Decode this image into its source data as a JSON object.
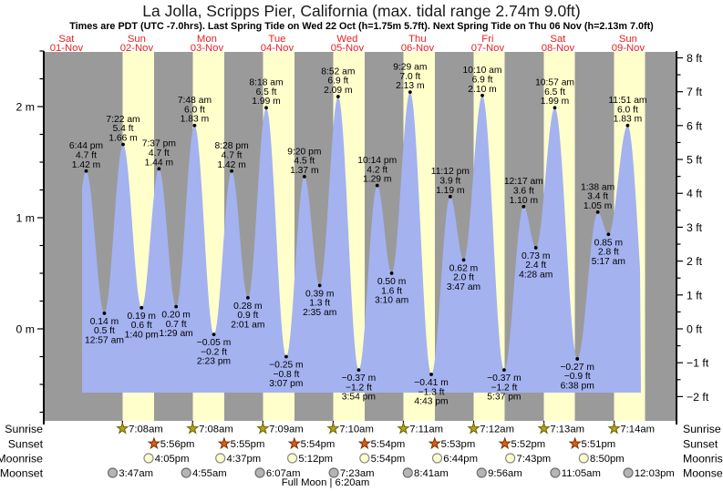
{
  "page": {
    "title": "La Jolla, Scripps Pier, California (max. tidal range 2.74m 9.0ft)",
    "subtitle": "Times are PDT (UTC -7.0hrs). Last Spring Tide on Wed 22 Oct (h=1.75m 5.7ft). Next Spring Tide on Thu 06 Nov (h=2.13m 7.0ft)"
  },
  "chart_data": {
    "type": "area",
    "title": "La Jolla, Scripps Pier tide curve",
    "ylim_m": [
      -0.85,
      2.5
    ],
    "y_axis_left": {
      "unit": "m",
      "tick_values": [
        2,
        1,
        0
      ],
      "tick_labels": [
        "2 m",
        "1 m",
        "0 m"
      ]
    },
    "y_axis_right": {
      "unit": "ft",
      "tick_values": [
        8,
        7,
        6,
        5,
        4,
        3,
        2,
        1,
        0,
        -1,
        -2
      ],
      "tick_labels": [
        "8 ft",
        "7 ft",
        "6 ft",
        "5 ft",
        "4 ft",
        "3 ft",
        "2 ft",
        "1 ft",
        "0 ft",
        "−1 ft",
        "−2 ft"
      ]
    },
    "days": [
      {
        "name": "Sat",
        "date": "01-Nov"
      },
      {
        "name": "Sun",
        "date": "02-Nov"
      },
      {
        "name": "Mon",
        "date": "03-Nov"
      },
      {
        "name": "Tue",
        "date": "04-Nov"
      },
      {
        "name": "Wed",
        "date": "05-Nov"
      },
      {
        "name": "Thu",
        "date": "06-Nov"
      },
      {
        "name": "Fri",
        "date": "07-Nov"
      },
      {
        "name": "Sat",
        "date": "08-Nov"
      },
      {
        "name": "Sun",
        "date": "09-Nov"
      }
    ],
    "tide_events": [
      {
        "day": 0,
        "hour": 18.733,
        "type": "high",
        "time": "6:44 pm",
        "ft_label": "4.7 ft",
        "m_label": "1.42 m",
        "height_m": 1.42
      },
      {
        "day": 1,
        "hour": 0.95,
        "type": "low",
        "time": "12:57 am",
        "ft_label": "0.5 ft",
        "m_label": "0.14 m",
        "height_m": 0.14
      },
      {
        "day": 1,
        "hour": 7.367,
        "type": "high",
        "time": "7:22 am",
        "ft_label": "5.4 ft",
        "m_label": "1.66 m",
        "height_m": 1.66
      },
      {
        "day": 1,
        "hour": 13.667,
        "type": "low",
        "time": "1:40 pm",
        "ft_label": "0.6 ft",
        "m_label": "0.19 m",
        "height_m": 0.19
      },
      {
        "day": 1,
        "hour": 19.617,
        "type": "high",
        "time": "7:37 pm",
        "ft_label": "4.7 ft",
        "m_label": "1.44 m",
        "height_m": 1.44
      },
      {
        "day": 2,
        "hour": 1.483,
        "type": "low",
        "time": "1:29 am",
        "ft_label": "0.7 ft",
        "m_label": "0.20 m",
        "height_m": 0.2
      },
      {
        "day": 2,
        "hour": 7.8,
        "type": "high",
        "time": "7:48 am",
        "ft_label": "6.0 ft",
        "m_label": "1.83 m",
        "height_m": 1.83
      },
      {
        "day": 2,
        "hour": 14.383,
        "type": "low",
        "time": "2:23 pm",
        "ft_label": "−0.2 ft",
        "m_label": "−0.05 m",
        "height_m": -0.05
      },
      {
        "day": 2,
        "hour": 20.467,
        "type": "high",
        "time": "8:28 pm",
        "ft_label": "4.7 ft",
        "m_label": "1.42 m",
        "height_m": 1.42
      },
      {
        "day": 3,
        "hour": 2.017,
        "type": "low",
        "time": "2:01 am",
        "ft_label": "0.9 ft",
        "m_label": "0.28 m",
        "height_m": 0.28
      },
      {
        "day": 3,
        "hour": 8.3,
        "type": "high",
        "time": "8:18 am",
        "ft_label": "6.5 ft",
        "m_label": "1.99 m",
        "height_m": 1.99
      },
      {
        "day": 3,
        "hour": 15.117,
        "type": "low",
        "time": "3:07 pm",
        "ft_label": "−0.8 ft",
        "m_label": "−0.25 m",
        "height_m": -0.25
      },
      {
        "day": 3,
        "hour": 21.333,
        "type": "high",
        "time": "9:20 pm",
        "ft_label": "4.5 ft",
        "m_label": "1.37 m",
        "height_m": 1.37
      },
      {
        "day": 4,
        "hour": 2.583,
        "type": "low",
        "time": "2:35 am",
        "ft_label": "1.3 ft",
        "m_label": "0.39 m",
        "height_m": 0.39
      },
      {
        "day": 4,
        "hour": 8.867,
        "type": "high",
        "time": "8:52 am",
        "ft_label": "6.9 ft",
        "m_label": "2.09 m",
        "height_m": 2.09
      },
      {
        "day": 4,
        "hour": 15.9,
        "type": "low",
        "time": "3:54 pm",
        "ft_label": "−1.2 ft",
        "m_label": "−0.37 m",
        "height_m": -0.37
      },
      {
        "day": 4,
        "hour": 22.233,
        "type": "high",
        "time": "10:14 pm",
        "ft_label": "4.2 ft",
        "m_label": "1.29 m",
        "height_m": 1.29
      },
      {
        "day": 5,
        "hour": 3.167,
        "type": "low",
        "time": "3:10 am",
        "ft_label": "1.6 ft",
        "m_label": "0.50 m",
        "height_m": 0.5
      },
      {
        "day": 5,
        "hour": 9.483,
        "type": "high",
        "time": "9:29 am",
        "ft_label": "7.0 ft",
        "m_label": "2.13 m",
        "height_m": 2.13
      },
      {
        "day": 5,
        "hour": 16.717,
        "type": "low",
        "time": "4:43 pm",
        "ft_label": "−1.3 ft",
        "m_label": "−0.41 m",
        "height_m": -0.41
      },
      {
        "day": 5,
        "hour": 23.2,
        "type": "high",
        "time": "11:12 pm",
        "ft_label": "3.9 ft",
        "m_label": "1.19 m",
        "height_m": 1.19
      },
      {
        "day": 6,
        "hour": 3.783,
        "type": "low",
        "time": "3:47 am",
        "ft_label": "2.0 ft",
        "m_label": "0.62 m",
        "height_m": 0.62
      },
      {
        "day": 6,
        "hour": 10.167,
        "type": "high",
        "time": "10:10 am",
        "ft_label": "6.9 ft",
        "m_label": "2.10 m",
        "height_m": 2.1
      },
      {
        "day": 6,
        "hour": 17.617,
        "type": "low",
        "time": "5:37 pm",
        "ft_label": "−1.2 ft",
        "m_label": "−0.37 m",
        "height_m": -0.37
      },
      {
        "day": 7,
        "hour": 0.283,
        "type": "high",
        "time": "12:17 am",
        "ft_label": "3.6 ft",
        "m_label": "1.10 m",
        "height_m": 1.1
      },
      {
        "day": 7,
        "hour": 4.467,
        "type": "low",
        "time": "4:28 am",
        "ft_label": "2.4 ft",
        "m_label": "0.73 m",
        "height_m": 0.73
      },
      {
        "day": 7,
        "hour": 10.95,
        "type": "high",
        "time": "10:57 am",
        "ft_label": "6.5 ft",
        "m_label": "1.99 m",
        "height_m": 1.99
      },
      {
        "day": 7,
        "hour": 18.633,
        "type": "low",
        "time": "6:38 pm",
        "ft_label": "−0.9 ft",
        "m_label": "−0.27 m",
        "height_m": -0.27
      },
      {
        "day": 8,
        "hour": 1.633,
        "type": "high",
        "time": "1:38 am",
        "ft_label": "3.4 ft",
        "m_label": "1.05 m",
        "height_m": 1.05
      },
      {
        "day": 8,
        "hour": 5.283,
        "type": "low",
        "time": "5:17 am",
        "ft_label": "2.8 ft",
        "m_label": "0.85 m",
        "height_m": 0.85
      },
      {
        "day": 8,
        "hour": 11.85,
        "type": "high",
        "time": "11:51 am",
        "ft_label": "6.0 ft",
        "m_label": "1.83 m",
        "height_m": 1.83
      }
    ]
  },
  "astro": {
    "row_labels": [
      "Sunrise",
      "Sunset",
      "Moonrise",
      "Moonset"
    ],
    "sunrise": [
      {
        "day": 1,
        "hour": 7.133,
        "time": "7:08am"
      },
      {
        "day": 2,
        "hour": 7.133,
        "time": "7:08am"
      },
      {
        "day": 3,
        "hour": 7.15,
        "time": "7:09am"
      },
      {
        "day": 4,
        "hour": 7.167,
        "time": "7:10am"
      },
      {
        "day": 5,
        "hour": 7.183,
        "time": "7:11am"
      },
      {
        "day": 6,
        "hour": 7.2,
        "time": "7:12am"
      },
      {
        "day": 7,
        "hour": 7.217,
        "time": "7:13am"
      },
      {
        "day": 8,
        "hour": 7.233,
        "time": "7:14am"
      }
    ],
    "sunset": [
      {
        "day": 1,
        "hour": 17.933,
        "time": "5:56pm"
      },
      {
        "day": 2,
        "hour": 17.917,
        "time": "5:55pm"
      },
      {
        "day": 3,
        "hour": 17.9,
        "time": "5:54pm"
      },
      {
        "day": 4,
        "hour": 17.9,
        "time": "5:54pm"
      },
      {
        "day": 5,
        "hour": 17.883,
        "time": "5:53pm"
      },
      {
        "day": 6,
        "hour": 17.867,
        "time": "5:52pm"
      },
      {
        "day": 7,
        "hour": 17.85,
        "time": "5:51pm"
      }
    ],
    "moonrise": [
      {
        "day": 1,
        "hour": 16.083,
        "time": "4:05pm"
      },
      {
        "day": 2,
        "hour": 16.617,
        "time": "4:37pm"
      },
      {
        "day": 3,
        "hour": 17.2,
        "time": "5:12pm"
      },
      {
        "day": 4,
        "hour": 17.9,
        "time": "5:54pm"
      },
      {
        "day": 5,
        "hour": 18.733,
        "time": "6:44pm"
      },
      {
        "day": 6,
        "hour": 19.717,
        "time": "7:43pm"
      },
      {
        "day": 7,
        "hour": 20.833,
        "time": "8:50pm"
      }
    ],
    "moonset": [
      {
        "day": 1,
        "hour": 3.783,
        "time": "3:47am"
      },
      {
        "day": 2,
        "hour": 4.917,
        "time": "4:55am"
      },
      {
        "day": 3,
        "hour": 6.117,
        "time": "6:07am"
      },
      {
        "day": 4,
        "hour": 7.383,
        "time": "7:23am"
      },
      {
        "day": 5,
        "hour": 8.683,
        "time": "8:41am"
      },
      {
        "day": 6,
        "hour": 9.933,
        "time": "9:56am"
      },
      {
        "day": 7,
        "hour": 11.083,
        "time": "11:05am"
      },
      {
        "day": 8,
        "hour": 12.05,
        "time": "12:03pm"
      }
    ],
    "full_moon_label": "Full Moon | 6:20am"
  },
  "colors": {
    "night_band": "#9a9a9a",
    "day_band": "#ffffcc",
    "tide_fill": "#a4b2f0",
    "date_red": "#e62020",
    "axis_black": "#000000",
    "sunrise_star": "#b0a41e",
    "sunrise_star_edge": "#6e6000",
    "sunset_star": "#dd5f14",
    "sunset_star_edge": "#7c2d00",
    "moonrise_circle": "#ffffcc",
    "moonrise_circle_edge": "#8a8a8a",
    "moonset_circle": "#b5b5b5",
    "moonset_circle_edge": "#6f6f6f"
  }
}
